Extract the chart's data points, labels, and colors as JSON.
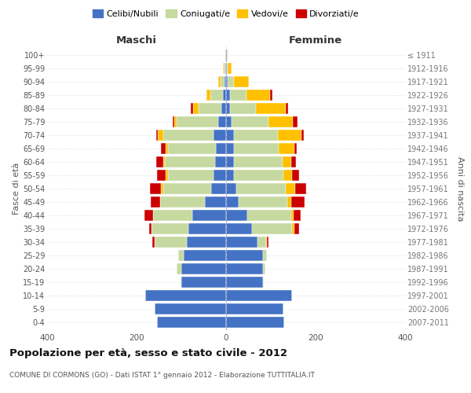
{
  "age_groups": [
    "0-4",
    "5-9",
    "10-14",
    "15-19",
    "20-24",
    "25-29",
    "30-34",
    "35-39",
    "40-44",
    "45-49",
    "50-54",
    "55-59",
    "60-64",
    "65-69",
    "70-74",
    "75-79",
    "80-84",
    "85-89",
    "90-94",
    "95-99",
    "100+"
  ],
  "birth_years": [
    "2007-2011",
    "2002-2006",
    "1997-2001",
    "1992-1996",
    "1987-1991",
    "1982-1986",
    "1977-1981",
    "1972-1976",
    "1967-1971",
    "1962-1966",
    "1957-1961",
    "1952-1956",
    "1947-1951",
    "1942-1946",
    "1937-1941",
    "1932-1936",
    "1927-1931",
    "1922-1926",
    "1917-1921",
    "1912-1916",
    "≤ 1911"
  ],
  "males": {
    "celibi": [
      155,
      160,
      180,
      100,
      100,
      95,
      88,
      85,
      75,
      48,
      33,
      28,
      24,
      22,
      28,
      18,
      10,
      7,
      4,
      2,
      1
    ],
    "coniugati": [
      0,
      0,
      0,
      2,
      10,
      12,
      72,
      82,
      88,
      100,
      108,
      102,
      112,
      108,
      112,
      92,
      52,
      28,
      8,
      3,
      1
    ],
    "vedovi": [
      0,
      0,
      0,
      0,
      0,
      0,
      0,
      0,
      0,
      0,
      5,
      5,
      5,
      5,
      12,
      5,
      12,
      8,
      5,
      2,
      0
    ],
    "divorziati": [
      0,
      0,
      0,
      0,
      0,
      0,
      5,
      5,
      20,
      20,
      25,
      20,
      15,
      10,
      5,
      5,
      5,
      0,
      0,
      0,
      0
    ]
  },
  "females": {
    "nubili": [
      130,
      128,
      148,
      82,
      82,
      82,
      70,
      58,
      48,
      28,
      22,
      18,
      18,
      18,
      18,
      12,
      8,
      8,
      4,
      2,
      1
    ],
    "coniugate": [
      0,
      0,
      0,
      2,
      5,
      10,
      20,
      90,
      98,
      108,
      112,
      110,
      108,
      100,
      98,
      82,
      58,
      38,
      14,
      2,
      0
    ],
    "vedove": [
      0,
      0,
      0,
      0,
      0,
      0,
      2,
      5,
      5,
      10,
      20,
      20,
      20,
      35,
      52,
      55,
      68,
      52,
      32,
      8,
      2
    ],
    "divorziate": [
      0,
      0,
      0,
      0,
      0,
      0,
      2,
      10,
      15,
      30,
      25,
      15,
      10,
      5,
      5,
      10,
      5,
      5,
      0,
      0,
      0
    ]
  },
  "colors": {
    "celibi": "#4472c4",
    "coniugati": "#c6d9a0",
    "vedovi": "#ffc000",
    "divorziati": "#cc0000"
  },
  "title": "Popolazione per età, sesso e stato civile - 2012",
  "subtitle": "COMUNE DI CORMONS (GO) - Dati ISTAT 1° gennaio 2012 - Elaborazione TUTTITALIA.IT",
  "xlabel_left": "Maschi",
  "xlabel_right": "Femmine",
  "ylabel_left": "Fasce di età",
  "ylabel_right": "Anni di nascita",
  "xlim": 400,
  "legend_labels": [
    "Celibi/Nubili",
    "Coniugati/e",
    "Vedovi/e",
    "Divorziati/e"
  ],
  "background_color": "#ffffff",
  "bar_height": 0.85
}
